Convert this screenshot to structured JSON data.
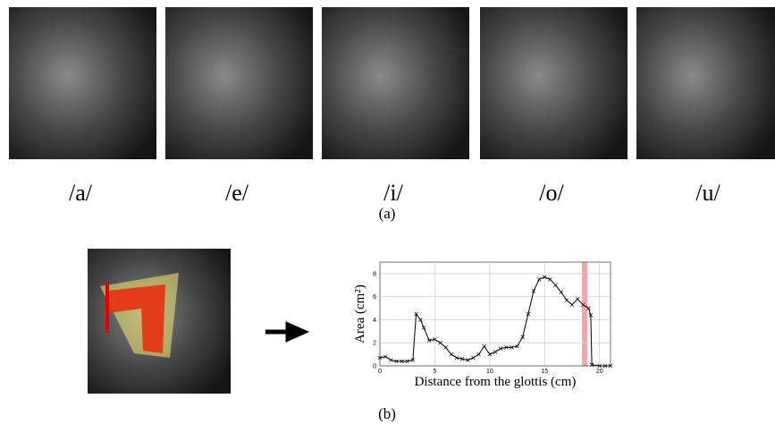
{
  "panel_a": {
    "labels": [
      "/a/",
      "/e/",
      "/i/",
      "/o/",
      "/u/"
    ],
    "caption": "(a)"
  },
  "panel_b": {
    "caption": "(b)"
  },
  "chart_data": {
    "type": "line",
    "xlabel": "Distance from the glottis (cm)",
    "ylabel": "Area (cm²)",
    "x": [
      0,
      0.5,
      1,
      1.5,
      2,
      2.5,
      3,
      3.3,
      3.7,
      4,
      4.5,
      5,
      5.5,
      6,
      6.5,
      7,
      7.5,
      8,
      8.5,
      9,
      9.5,
      10,
      10.5,
      11,
      11.5,
      12,
      12.5,
      13,
      13.5,
      14,
      14.5,
      15,
      15.5,
      16,
      16.5,
      17,
      17.5,
      18,
      18.5,
      19,
      19.2,
      19.3,
      20,
      20.5,
      21
    ],
    "values": [
      0.7,
      0.8,
      0.5,
      0.4,
      0.4,
      0.4,
      0.5,
      4.5,
      4.0,
      3.3,
      2.2,
      2.3,
      2.0,
      1.6,
      1.0,
      0.7,
      0.6,
      0.5,
      0.7,
      1.0,
      1.7,
      1.0,
      1.2,
      1.5,
      1.6,
      1.6,
      1.7,
      2.5,
      4.5,
      6.5,
      7.5,
      7.7,
      7.5,
      7.0,
      6.4,
      5.7,
      5.3,
      5.8,
      5.3,
      5.0,
      4.4,
      0.1,
      0,
      0,
      0
    ],
    "color": "#000000",
    "xlim": [
      0,
      21
    ],
    "ylim": [
      0,
      9
    ],
    "xticks": [
      0,
      5,
      10,
      15,
      20
    ],
    "yticks": [
      0,
      2,
      4,
      6,
      8
    ],
    "grid": true
  }
}
